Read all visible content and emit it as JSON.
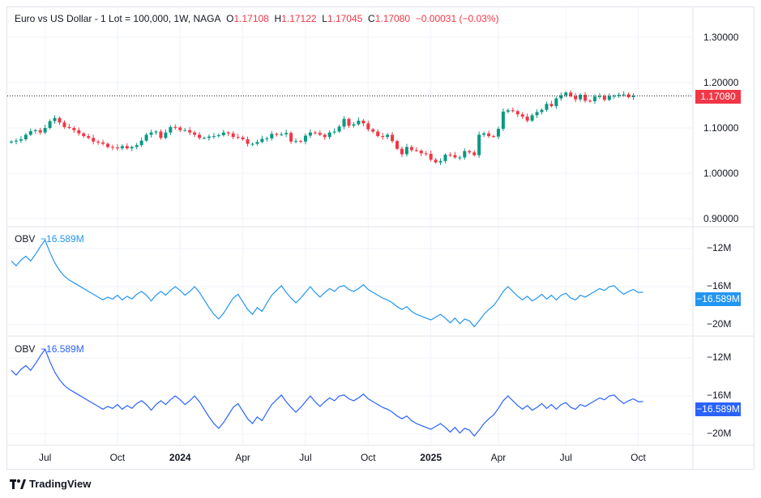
{
  "header": {
    "symbol": "Euro vs US Dollar - 1 Lot = 100,000, 1W, NAGA",
    "o_label": "O",
    "o": "1.17108",
    "h_label": "H",
    "h": "1.17122",
    "l_label": "L",
    "l": "1.17045",
    "c_label": "C",
    "c": "1.17080",
    "change": "−0.00031 (−0.03%)"
  },
  "price_axis": {
    "ticks": [
      "1.30000",
      "1.20000",
      "1.10000",
      "1.00000",
      "0.90000"
    ],
    "tick_values": [
      1.3,
      1.2,
      1.1,
      1.0,
      0.9
    ],
    "current": "1.17080",
    "current_value": 1.1708
  },
  "obv_panes": [
    {
      "label": "OBV",
      "value": "−16.589M",
      "color": "#2196f3",
      "ticks": [
        "−12M",
        "−16M",
        "−20M"
      ],
      "tick_values": [
        -12,
        -16,
        -20
      ]
    },
    {
      "label": "OBV",
      "value": "−16.589M",
      "color": "#2962ff",
      "ticks": [
        "−12M",
        "−16M",
        "−20M"
      ],
      "tick_values": [
        -12,
        -16,
        -20
      ]
    }
  ],
  "time_axis": [
    {
      "label": "Jul",
      "index": 7
    },
    {
      "label": "Oct",
      "index": 22
    },
    {
      "label": "2024",
      "index": 35,
      "bold": true
    },
    {
      "label": "Apr",
      "index": 48
    },
    {
      "label": "Jul",
      "index": 61
    },
    {
      "label": "Oct",
      "index": 74
    },
    {
      "label": "2025",
      "index": 87,
      "bold": true
    },
    {
      "label": "Apr",
      "index": 101
    },
    {
      "label": "Jul",
      "index": 115
    },
    {
      "label": "Oct",
      "index": 130
    }
  ],
  "colors": {
    "up": "#089981",
    "down": "#f23645",
    "grid": "#f0f3fa"
  },
  "chart_data": {
    "type": "candlestick",
    "closes": [
      1.07,
      1.072,
      1.075,
      1.085,
      1.093,
      1.095,
      1.09,
      1.1,
      1.115,
      1.122,
      1.112,
      1.102,
      1.1,
      1.095,
      1.088,
      1.082,
      1.078,
      1.07,
      1.068,
      1.065,
      1.058,
      1.057,
      1.055,
      1.06,
      1.055,
      1.058,
      1.062,
      1.072,
      1.085,
      1.09,
      1.092,
      1.078,
      1.09,
      1.102,
      1.101,
      1.095,
      1.095,
      1.09,
      1.085,
      1.078,
      1.078,
      1.081,
      1.082,
      1.084,
      1.09,
      1.088,
      1.08,
      1.079,
      1.075,
      1.065,
      1.065,
      1.069,
      1.076,
      1.077,
      1.087,
      1.085,
      1.086,
      1.089,
      1.07,
      1.071,
      1.07,
      1.083,
      1.09,
      1.089,
      1.085,
      1.08,
      1.09,
      1.092,
      1.103,
      1.12,
      1.105,
      1.108,
      1.116,
      1.11,
      1.097,
      1.092,
      1.082,
      1.08,
      1.085,
      1.071,
      1.054,
      1.042,
      1.058,
      1.051,
      1.05,
      1.044,
      1.043,
      1.03,
      1.024,
      1.027,
      1.041,
      1.04,
      1.035,
      1.035,
      1.049,
      1.046,
      1.04,
      1.085,
      1.088,
      1.082,
      1.081,
      1.098,
      1.136,
      1.139,
      1.137,
      1.13,
      1.125,
      1.116,
      1.128,
      1.135,
      1.14,
      1.153,
      1.148,
      1.165,
      1.172,
      1.178,
      1.17,
      1.163,
      1.173,
      1.16,
      1.159,
      1.169,
      1.17,
      1.162,
      1.17,
      1.171,
      1.173,
      1.174,
      1.168,
      1.1708
    ],
    "obv_millions": [
      -13.3,
      -13.8,
      -13.2,
      -12.8,
      -13.3,
      -12.6,
      -11.8,
      -11.1,
      -12.4,
      -13.5,
      -14.3,
      -14.9,
      -15.3,
      -15.6,
      -15.9,
      -16.2,
      -16.5,
      -16.8,
      -17.1,
      -17.4,
      -17.1,
      -17.3,
      -16.9,
      -17.4,
      -17.0,
      -17.3,
      -16.8,
      -16.5,
      -16.9,
      -17.5,
      -16.9,
      -16.5,
      -16.9,
      -16.4,
      -16.0,
      -16.4,
      -16.9,
      -16.5,
      -16.0,
      -16.6,
      -17.4,
      -18.2,
      -18.9,
      -19.4,
      -18.8,
      -18.0,
      -17.2,
      -16.8,
      -17.6,
      -18.4,
      -18.9,
      -18.2,
      -18.6,
      -17.7,
      -16.9,
      -16.4,
      -15.9,
      -16.6,
      -17.2,
      -17.7,
      -17.2,
      -16.6,
      -16.0,
      -16.6,
      -17.1,
      -16.6,
      -16.2,
      -16.5,
      -16.0,
      -15.9,
      -16.3,
      -16.5,
      -16.2,
      -15.8,
      -16.3,
      -16.6,
      -16.9,
      -17.2,
      -17.4,
      -17.7,
      -18.1,
      -18.4,
      -18.1,
      -18.6,
      -18.9,
      -19.1,
      -19.3,
      -19.5,
      -19.2,
      -18.9,
      -19.3,
      -19.8,
      -19.3,
      -19.9,
      -19.4,
      -19.6,
      -20.2,
      -19.6,
      -18.9,
      -18.4,
      -18.0,
      -17.3,
      -16.5,
      -16.0,
      -16.5,
      -17.0,
      -17.4,
      -17.0,
      -17.5,
      -17.2,
      -16.8,
      -17.3,
      -16.9,
      -17.4,
      -16.9,
      -16.7,
      -17.2,
      -17.4,
      -16.9,
      -17.1,
      -16.8,
      -16.5,
      -16.2,
      -16.4,
      -16.0,
      -15.9,
      -16.4,
      -16.8,
      -16.5,
      -16.3,
      -16.6,
      -16.589
    ],
    "ylim": [
      0.86,
      1.34
    ],
    "obv_ylim": [
      -21.2,
      -10.2
    ]
  },
  "footer": {
    "brand": "TradingView"
  }
}
